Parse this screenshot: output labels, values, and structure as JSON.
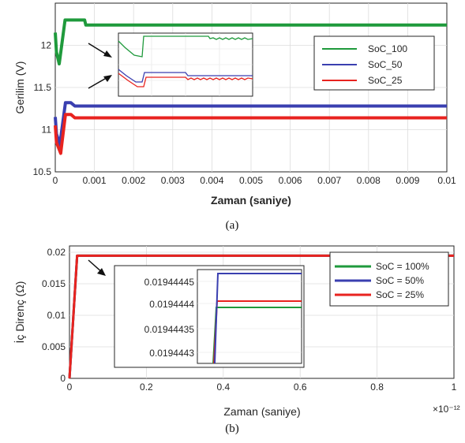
{
  "colors": {
    "green": "#1f9a3c",
    "blue": "#3a3fb0",
    "red": "#e8231f",
    "axis": "#262626"
  },
  "chart_data": [
    {
      "type": "line",
      "caption": "(a)",
      "xlabel": "Zaman (saniye)",
      "ylabel": "Gerilim (V)",
      "xlim": [
        0,
        0.01
      ],
      "ylim": [
        10.5,
        12.5
      ],
      "xticks": [
        "0",
        "0.001",
        "0.002",
        "0.003",
        "0.004",
        "0.005",
        "0.006",
        "0.007",
        "0.008",
        "0.009",
        "0.01"
      ],
      "yticks": [
        "10.5",
        "11",
        "11.5",
        "12"
      ],
      "grid": true,
      "legend_position": "right",
      "series": [
        {
          "name": "SoC_100",
          "color": "#1f9a3c",
          "x": [
            0,
            3e-05,
            0.0001,
            0.00012,
            0.00025,
            0.0006,
            0.00075,
            0.00078,
            0.01
          ],
          "y": [
            12.15,
            11.92,
            11.78,
            11.85,
            12.3,
            12.3,
            12.3,
            12.24,
            12.24
          ]
        },
        {
          "name": "SoC_50",
          "color": "#3a3fb0",
          "x": [
            0,
            3e-05,
            0.00012,
            0.00014,
            0.00026,
            0.0004,
            0.0005,
            0.01
          ],
          "y": [
            11.15,
            10.95,
            10.82,
            10.9,
            11.32,
            11.32,
            11.28,
            11.28
          ]
        },
        {
          "name": "SoC_25",
          "color": "#e8231f",
          "x": [
            0,
            3e-05,
            0.00014,
            0.00016,
            0.00026,
            0.0004,
            0.0005,
            0.01
          ],
          "y": [
            11.05,
            10.85,
            10.72,
            10.8,
            11.18,
            11.18,
            11.14,
            11.14
          ]
        }
      ]
    },
    {
      "type": "line",
      "caption": "(b)",
      "xlabel": "Zaman (saniye)",
      "ylabel": "İç Direnç (Ω)",
      "x_exponent": "×10⁻¹²",
      "xlim": [
        0,
        1
      ],
      "ylim": [
        0,
        0.021
      ],
      "xticks": [
        "0",
        "0.2",
        "0.4",
        "0.6",
        "0.8",
        "1"
      ],
      "yticks": [
        "0",
        "0.005",
        "0.01",
        "0.015",
        "0.02"
      ],
      "grid": true,
      "legend_position": "top-right",
      "series": [
        {
          "name": "SoC = 100%",
          "color": "#1f9a3c",
          "x": [
            0,
            0.02,
            1
          ],
          "y": [
            0,
            0.019444,
            0.019444
          ]
        },
        {
          "name": "SoC = 50%",
          "color": "#3a3fb0",
          "x": [
            0,
            0.02,
            1
          ],
          "y": [
            0,
            0.019444,
            0.019444
          ]
        },
        {
          "name": "SoC = 25%",
          "color": "#e8231f",
          "x": [
            0,
            0.02,
            1
          ],
          "y": [
            0,
            0.019444,
            0.019444
          ]
        }
      ],
      "inset": {
        "yticks": [
          "0.01944445",
          "0.0194444",
          "0.01944435",
          "0.0194443"
        ],
        "values": {
          "SoC = 100%": 0.0194444,
          "SoC = 50%": 0.01944446,
          "SoC = 25%": 0.01944441
        }
      }
    }
  ]
}
